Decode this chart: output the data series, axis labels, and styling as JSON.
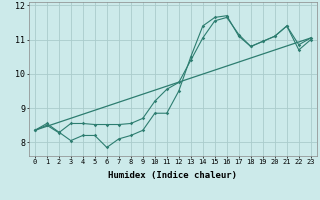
{
  "title": "",
  "xlabel": "Humidex (Indice chaleur)",
  "ylabel": "",
  "bg_color": "#cceaea",
  "grid_color": "#aacccc",
  "line_color": "#2d7d70",
  "xlim": [
    -0.5,
    23.5
  ],
  "ylim": [
    7.6,
    12.1
  ],
  "xticks": [
    0,
    1,
    2,
    3,
    4,
    5,
    6,
    7,
    8,
    9,
    10,
    11,
    12,
    13,
    14,
    15,
    16,
    17,
    18,
    19,
    20,
    21,
    22,
    23
  ],
  "yticks": [
    8,
    9,
    10,
    11,
    12
  ],
  "series1_x": [
    0,
    1,
    2,
    3,
    4,
    5,
    6,
    7,
    8,
    9,
    10,
    11,
    12,
    13,
    14,
    15,
    16,
    17,
    18,
    19,
    20,
    21,
    22,
    23
  ],
  "series1_y": [
    8.35,
    8.55,
    8.3,
    8.05,
    8.2,
    8.2,
    7.85,
    8.1,
    8.2,
    8.35,
    8.85,
    8.85,
    9.5,
    10.5,
    11.4,
    11.65,
    11.7,
    11.1,
    10.8,
    10.95,
    11.1,
    11.4,
    10.7,
    11.0
  ],
  "series2_x": [
    0,
    1,
    2,
    3,
    4,
    5,
    6,
    7,
    8,
    9,
    10,
    11,
    12,
    13,
    14,
    15,
    16,
    17,
    18,
    19,
    20,
    21,
    22,
    23
  ],
  "series2_y": [
    8.35,
    8.5,
    8.28,
    8.55,
    8.55,
    8.52,
    8.52,
    8.52,
    8.55,
    8.7,
    9.2,
    9.55,
    9.75,
    10.4,
    11.05,
    11.55,
    11.65,
    11.15,
    10.8,
    10.95,
    11.1,
    11.4,
    10.85,
    11.05
  ],
  "series3_x": [
    0,
    23
  ],
  "series3_y": [
    8.35,
    11.05
  ]
}
